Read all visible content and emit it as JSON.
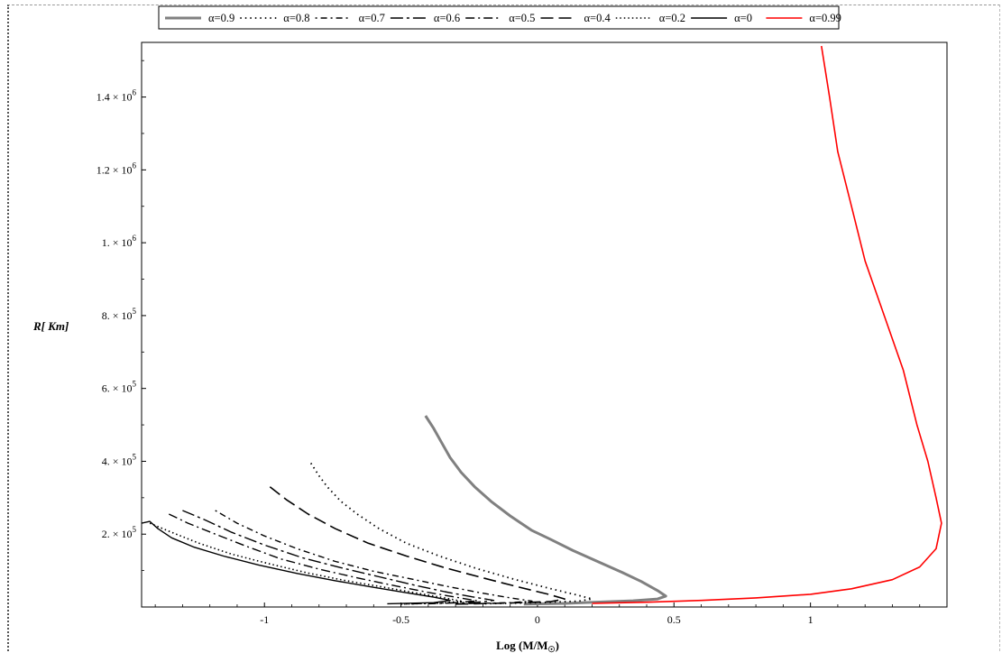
{
  "chart_data": {
    "type": "line",
    "xlabel_main": "Log (M/M",
    "xlabel_sub": "☉",
    "xlabel_close": ")",
    "ylabel_main": "R",
    "ylabel_unit": "[ Km]",
    "xlim": [
      -1.45,
      1.5
    ],
    "ylim": [
      0,
      1550000.0
    ],
    "x_ticks": [
      {
        "value": -1,
        "label": "-1"
      },
      {
        "value": -0.5,
        "label": "-0.5"
      },
      {
        "value": 0,
        "label": "0"
      },
      {
        "value": 0.5,
        "label": "0.5"
      },
      {
        "value": 1,
        "label": "1"
      }
    ],
    "y_ticks": [
      {
        "value": 200000,
        "mant": "2. × 10",
        "exp": "5"
      },
      {
        "value": 400000,
        "mant": "4. × 10",
        "exp": "5"
      },
      {
        "value": 600000,
        "mant": "6. × 10",
        "exp": "5"
      },
      {
        "value": 800000,
        "mant": "8. × 10",
        "exp": "5"
      },
      {
        "value": 1000000,
        "mant": "1. × 10",
        "exp": "6"
      },
      {
        "value": 1200000,
        "mant": "1.2 × 10",
        "exp": "6"
      },
      {
        "value": 1400000,
        "mant": "1.4 × 10",
        "exp": "6"
      }
    ],
    "legend_position": "top",
    "series": [
      {
        "name": "α=0.9",
        "color": "#808080",
        "dash": "",
        "width": 3,
        "points": [
          [
            -0.41,
            525000
          ],
          [
            -0.38,
            490000
          ],
          [
            -0.35,
            450000
          ],
          [
            -0.32,
            410000
          ],
          [
            -0.28,
            370000
          ],
          [
            -0.23,
            330000
          ],
          [
            -0.17,
            290000
          ],
          [
            -0.1,
            250000
          ],
          [
            -0.02,
            210000
          ],
          [
            0.05,
            185000
          ],
          [
            0.13,
            155000
          ],
          [
            0.22,
            125000
          ],
          [
            0.31,
            95000
          ],
          [
            0.38,
            70000
          ],
          [
            0.44,
            45000
          ],
          [
            0.47,
            30000
          ],
          [
            0.44,
            22000
          ],
          [
            0.35,
            17000
          ],
          [
            0.25,
            14000
          ],
          [
            0.1,
            10000
          ],
          [
            -0.05,
            8000
          ]
        ]
      },
      {
        "name": "α=0.8",
        "color": "#000000",
        "dash": "1.5,4",
        "width": 1.8,
        "points": [
          [
            -0.83,
            395000
          ],
          [
            -0.8,
            360000
          ],
          [
            -0.77,
            330000
          ],
          [
            -0.72,
            290000
          ],
          [
            -0.66,
            255000
          ],
          [
            -0.58,
            215000
          ],
          [
            -0.48,
            175000
          ],
          [
            -0.36,
            140000
          ],
          [
            -0.22,
            105000
          ],
          [
            -0.08,
            75000
          ],
          [
            0.05,
            50000
          ],
          [
            0.15,
            32000
          ],
          [
            0.2,
            22000
          ],
          [
            0.15,
            16000
          ],
          [
            0.0,
            12000
          ],
          [
            -0.2,
            9000
          ]
        ]
      },
      {
        "name": "α=0.7",
        "color": "#000000",
        "dash": "2,4,7,4",
        "width": 1.4,
        "points": [
          [
            -1.18,
            265000
          ],
          [
            -1.1,
            230000
          ],
          [
            -1.0,
            195000
          ],
          [
            -0.88,
            160000
          ],
          [
            -0.74,
            125000
          ],
          [
            -0.6,
            98000
          ],
          [
            -0.45,
            75000
          ],
          [
            -0.32,
            55000
          ],
          [
            -0.2,
            38000
          ],
          [
            -0.1,
            25000
          ],
          [
            -0.02,
            16000
          ],
          [
            -0.1,
            12000
          ],
          [
            -0.3,
            9000
          ]
        ]
      },
      {
        "name": "α=0.6",
        "color": "#000000",
        "dash": "14,4,3,4",
        "width": 1.4,
        "points": [
          [
            -1.3,
            265000
          ],
          [
            -1.22,
            240000
          ],
          [
            -1.12,
            205000
          ],
          [
            -1.0,
            170000
          ],
          [
            -0.86,
            135000
          ],
          [
            -0.72,
            108000
          ],
          [
            -0.58,
            83000
          ],
          [
            -0.45,
            60000
          ],
          [
            -0.34,
            42000
          ],
          [
            -0.24,
            28000
          ],
          [
            -0.16,
            18000
          ],
          [
            -0.22,
            13000
          ],
          [
            -0.4,
            9000
          ]
        ]
      },
      {
        "name": "α=0.5",
        "color": "#000000",
        "dash": "10,4,2,4",
        "width": 1.4,
        "points": [
          [
            -1.35,
            255000
          ],
          [
            -1.28,
            230000
          ],
          [
            -1.18,
            200000
          ],
          [
            -1.06,
            165000
          ],
          [
            -0.94,
            132000
          ],
          [
            -0.8,
            104000
          ],
          [
            -0.66,
            80000
          ],
          [
            -0.52,
            58000
          ],
          [
            -0.4,
            40000
          ],
          [
            -0.3,
            27000
          ],
          [
            -0.22,
            17000
          ],
          [
            -0.3,
            12000
          ],
          [
            -0.5,
            8000
          ]
        ]
      },
      {
        "name": "α=0.4",
        "color": "#000000",
        "dash": "14,6",
        "width": 1.6,
        "points": [
          [
            -0.98,
            330000
          ],
          [
            -0.92,
            295000
          ],
          [
            -0.84,
            255000
          ],
          [
            -0.74,
            215000
          ],
          [
            -0.62,
            175000
          ],
          [
            -0.48,
            140000
          ],
          [
            -0.34,
            108000
          ],
          [
            -0.2,
            80000
          ],
          [
            -0.07,
            55000
          ],
          [
            0.04,
            35000
          ],
          [
            0.1,
            22000
          ],
          [
            0.05,
            15000
          ],
          [
            -0.1,
            11000
          ],
          [
            -0.3,
            8000
          ]
        ]
      },
      {
        "name": "α=0.2",
        "color": "#000000",
        "dash": "1.5,3",
        "width": 1.6,
        "points": [
          [
            -1.42,
            230000
          ],
          [
            -1.34,
            205000
          ],
          [
            -1.24,
            175000
          ],
          [
            -1.12,
            145000
          ],
          [
            -0.98,
            118000
          ],
          [
            -0.84,
            93000
          ],
          [
            -0.7,
            72000
          ],
          [
            -0.56,
            54000
          ],
          [
            -0.44,
            38000
          ],
          [
            -0.34,
            25000
          ],
          [
            -0.28,
            16000
          ],
          [
            -0.35,
            11000
          ],
          [
            -0.5,
            8000
          ]
        ]
      },
      {
        "name": "α=0",
        "color": "#000000",
        "dash": "",
        "width": 1.4,
        "points": [
          [
            -1.45,
            230000
          ],
          [
            -1.42,
            235000
          ],
          [
            -1.39,
            215000
          ],
          [
            -1.34,
            190000
          ],
          [
            -1.26,
            165000
          ],
          [
            -1.15,
            140000
          ],
          [
            -1.02,
            115000
          ],
          [
            -0.88,
            92000
          ],
          [
            -0.74,
            72000
          ],
          [
            -0.6,
            54000
          ],
          [
            -0.48,
            39000
          ],
          [
            -0.38,
            27000
          ],
          [
            -0.32,
            18000
          ],
          [
            -0.38,
            12000
          ],
          [
            -0.55,
            9000
          ]
        ]
      },
      {
        "name": "α=0.99",
        "color": "#ff0000",
        "dash": "",
        "width": 1.6,
        "points": [
          [
            1.04,
            1540000
          ],
          [
            1.07,
            1400000
          ],
          [
            1.1,
            1250000
          ],
          [
            1.15,
            1100000
          ],
          [
            1.2,
            950000
          ],
          [
            1.27,
            800000
          ],
          [
            1.34,
            650000
          ],
          [
            1.39,
            500000
          ],
          [
            1.43,
            400000
          ],
          [
            1.46,
            300000
          ],
          [
            1.48,
            230000
          ],
          [
            1.46,
            160000
          ],
          [
            1.4,
            110000
          ],
          [
            1.3,
            75000
          ],
          [
            1.15,
            50000
          ],
          [
            1.0,
            35000
          ],
          [
            0.8,
            25000
          ],
          [
            0.6,
            18000
          ],
          [
            0.4,
            13000
          ],
          [
            0.2,
            10000
          ]
        ]
      }
    ]
  }
}
